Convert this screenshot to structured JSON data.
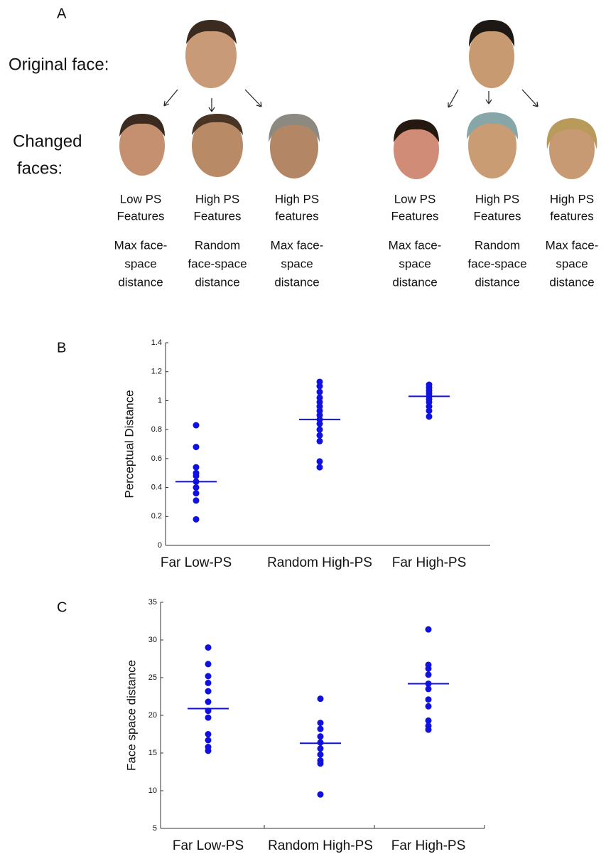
{
  "panel_a": {
    "label": "A",
    "original_label": "Original face:",
    "changed_label": [
      "Changed",
      "faces:"
    ],
    "columns": [
      {
        "feature": [
          "Low PS",
          "Features"
        ],
        "distance": [
          "Max face-",
          "space",
          "distance"
        ]
      },
      {
        "feature": [
          "High PS",
          "Features"
        ],
        "distance": [
          "Random",
          "face-space",
          "distance"
        ]
      },
      {
        "feature": [
          "High PS",
          "features"
        ],
        "distance": [
          "Max face-",
          "space",
          "distance"
        ]
      },
      {
        "feature": [
          "Low PS",
          "Features"
        ],
        "distance": [
          "Max face-",
          "space",
          "distance"
        ]
      },
      {
        "feature": [
          "High PS",
          "Features"
        ],
        "distance": [
          "Random",
          "face-space",
          "distance"
        ]
      },
      {
        "feature": [
          "High PS",
          "features"
        ],
        "distance": [
          "Max face-",
          "space",
          "distance"
        ]
      }
    ]
  },
  "chart_data": [
    {
      "type": "strip",
      "panel_label": "B",
      "ylabel": "Perceptual Distance",
      "color": "#1010e0",
      "categories": [
        "Far Low-PS",
        "Random High-PS",
        "Far High-PS"
      ],
      "values": [
        [
          0.83,
          0.68,
          0.54,
          0.5,
          0.48,
          0.44,
          0.4,
          0.36,
          0.31,
          0.18
        ],
        [
          1.13,
          1.1,
          1.06,
          1.02,
          0.99,
          0.96,
          0.93,
          0.9,
          0.87,
          0.84,
          0.8,
          0.76,
          0.72,
          0.58,
          0.54
        ],
        [
          1.11,
          1.09,
          1.07,
          1.05,
          1.03,
          1.01,
          0.99,
          0.96,
          0.93,
          0.89
        ]
      ],
      "means": [
        0.44,
        0.87,
        1.03
      ],
      "ylim": [
        0,
        1.4
      ],
      "yticks": [
        0,
        0.2,
        0.4,
        0.6,
        0.8,
        1,
        1.2,
        1.4
      ],
      "category_dividers": false
    },
    {
      "type": "strip",
      "panel_label": "C",
      "ylabel": "Face space distance",
      "color": "#1010e0",
      "categories": [
        "Far Low-PS",
        "Random High-PS",
        "Far High-PS"
      ],
      "values": [
        [
          29,
          26.8,
          25.2,
          24.3,
          23.2,
          21.8,
          20.6,
          19.7,
          17.5,
          16.7,
          15.8,
          15.3
        ],
        [
          22.2,
          19,
          18.2,
          17.2,
          16.4,
          15.6,
          14.8,
          14,
          13.6,
          9.5
        ],
        [
          31.4,
          26.7,
          26.2,
          25.4,
          24.2,
          23.5,
          22.1,
          21.2,
          19.3,
          18.6,
          18.1
        ]
      ],
      "means": [
        20.9,
        16.3,
        24.2
      ],
      "ylim": [
        5,
        35
      ],
      "yticks": [
        5,
        10,
        15,
        20,
        25,
        30,
        35
      ],
      "category_dividers": true
    }
  ]
}
